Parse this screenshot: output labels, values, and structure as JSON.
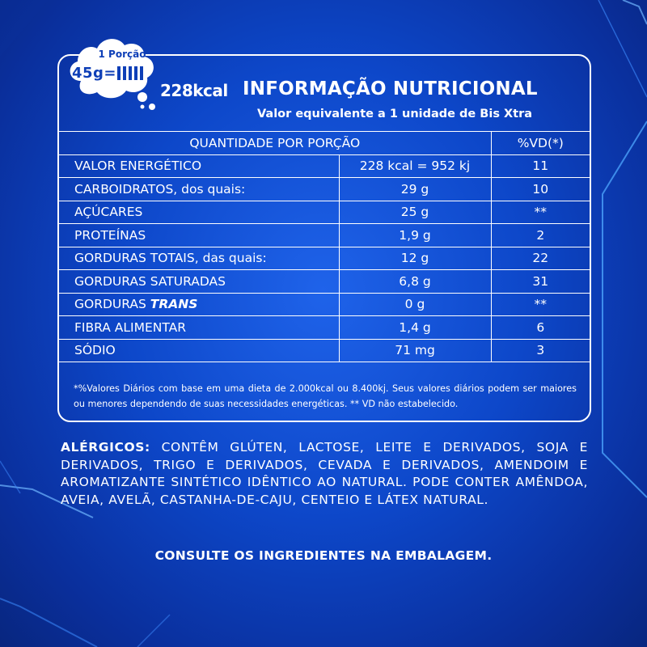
{
  "serving": {
    "portion_label": "1 Porção",
    "weight": "45g=",
    "unit_count": 5,
    "kcal": "228kcal"
  },
  "header": {
    "title": "INFORMAÇÃO NUTRICIONAL",
    "subtitle": "Valor equivalente a 1 unidade de Bis Xtra"
  },
  "table": {
    "header_quantity": "QUANTIDADE POR PORÇÃO",
    "header_vd": "%VD(*)",
    "rows": [
      {
        "name": "VALOR ENERGÉTICO",
        "qty": "228 kcal = 952 kj",
        "vd": "11"
      },
      {
        "name": "CARBOIDRATOS, dos quais:",
        "qty": "29 g",
        "vd": "10"
      },
      {
        "name": "AÇÚCARES",
        "qty": "25 g",
        "vd": "**"
      },
      {
        "name": "PROTEÍNAS",
        "qty": "1,9 g",
        "vd": "2"
      },
      {
        "name": "GORDURAS TOTAIS, das quais:",
        "qty": "12 g",
        "vd": "22"
      },
      {
        "name": "GORDURAS SATURADAS",
        "qty": "6,8 g",
        "vd": "31"
      },
      {
        "name": "GORDURAS ",
        "name_emphasis": "TRANS",
        "qty": "0 g",
        "vd": "**"
      },
      {
        "name": "FIBRA ALIMENTAR",
        "qty": "1,4 g",
        "vd": "6"
      },
      {
        "name": "SÓDIO",
        "qty": "71 mg",
        "vd": "3"
      }
    ]
  },
  "footnote": "*%Valores Diários com base em uma dieta de 2.000kcal ou 8.400kj. Seus valores diários podem ser maiores ou menores dependendo de suas necessidades energéticas. ** VD não estabelecido.",
  "allergens": {
    "label": "ALÉRGICOS:",
    "text": " CONTÊM GLÚTEN, LACTOSE, LEITE E DERIVADOS, SOJA E DERIVADOS, TRIGO E DERIVADOS, CEVADA E DERIVADOS, AMENDOIM E AROMATIZANTE SINTÉTICO IDÊNTICO AO NATURAL. PODE CONTER AMÊNDOA, AVEIA, AVELÃ, CASTANHA-DE-CAJU, CENTEIO E LÁTEX NATURAL."
  },
  "consult": "CONSULTE OS INGREDIENTES NA EMBALAGEM.",
  "colors": {
    "background": "#0d47c9",
    "text": "#ffffff",
    "cloud_text": "#0e3fb7",
    "accent_lines": "#4fa8ff"
  }
}
